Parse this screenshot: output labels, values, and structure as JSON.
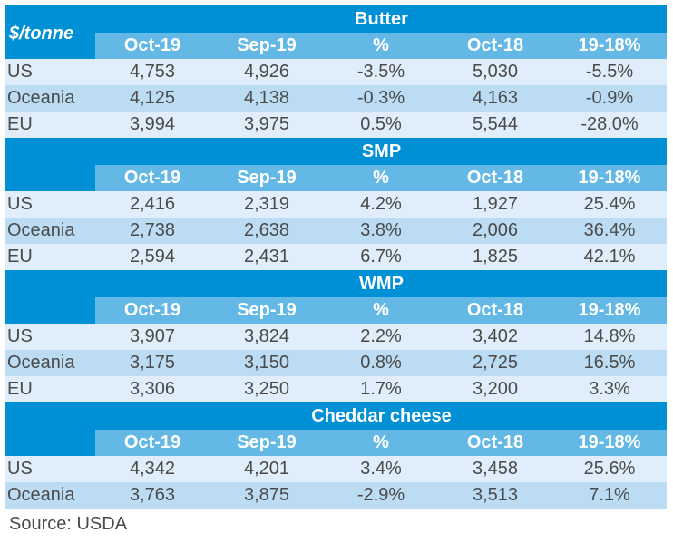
{
  "unit_label": "$/tonne",
  "columns": [
    "Oct-19",
    "Sep-19",
    "%",
    "Oct-18",
    "19-18%"
  ],
  "sections": [
    {
      "title": "Butter",
      "rows": [
        {
          "region": "US",
          "values": [
            "4,753",
            "4,926",
            "-3.5%",
            "5,030",
            "-5.5%"
          ]
        },
        {
          "region": "Oceania",
          "values": [
            "4,125",
            "4,138",
            "-0.3%",
            "4,163",
            "-0.9%"
          ]
        },
        {
          "region": "EU",
          "values": [
            "3,994",
            "3,975",
            "0.5%",
            "5,544",
            "-28.0%"
          ]
        }
      ]
    },
    {
      "title": "SMP",
      "rows": [
        {
          "region": "US",
          "values": [
            "2,416",
            "2,319",
            "4.2%",
            "1,927",
            "25.4%"
          ]
        },
        {
          "region": "Oceania",
          "values": [
            "2,738",
            "2,638",
            "3.8%",
            "2,006",
            "36.4%"
          ]
        },
        {
          "region": "EU",
          "values": [
            "2,594",
            "2,431",
            "6.7%",
            "1,825",
            "42.1%"
          ]
        }
      ]
    },
    {
      "title": "WMP",
      "rows": [
        {
          "region": "US",
          "values": [
            "3,907",
            "3,824",
            "2.2%",
            "3,402",
            "14.8%"
          ]
        },
        {
          "region": "Oceania",
          "values": [
            "3,175",
            "3,150",
            "0.8%",
            "2,725",
            "16.5%"
          ]
        },
        {
          "region": "EU",
          "values": [
            "3,306",
            "3,250",
            "1.7%",
            "3,200",
            "3.3%"
          ]
        }
      ]
    },
    {
      "title": "Cheddar cheese",
      "rows": [
        {
          "region": "US",
          "values": [
            "4,342",
            "4,201",
            "3.4%",
            "3,458",
            "25.6%"
          ]
        },
        {
          "region": "Oceania",
          "values": [
            "3,763",
            "3,875",
            "-2.9%",
            "3,513",
            "7.1%"
          ]
        }
      ]
    }
  ],
  "source": "Source: USDA",
  "colors": {
    "header_dark": "#0090d5",
    "header_light": "#63b8e6",
    "row_light": "#dfeefa",
    "row_mid": "#bcdcf3",
    "text": "#4a4a4a"
  }
}
